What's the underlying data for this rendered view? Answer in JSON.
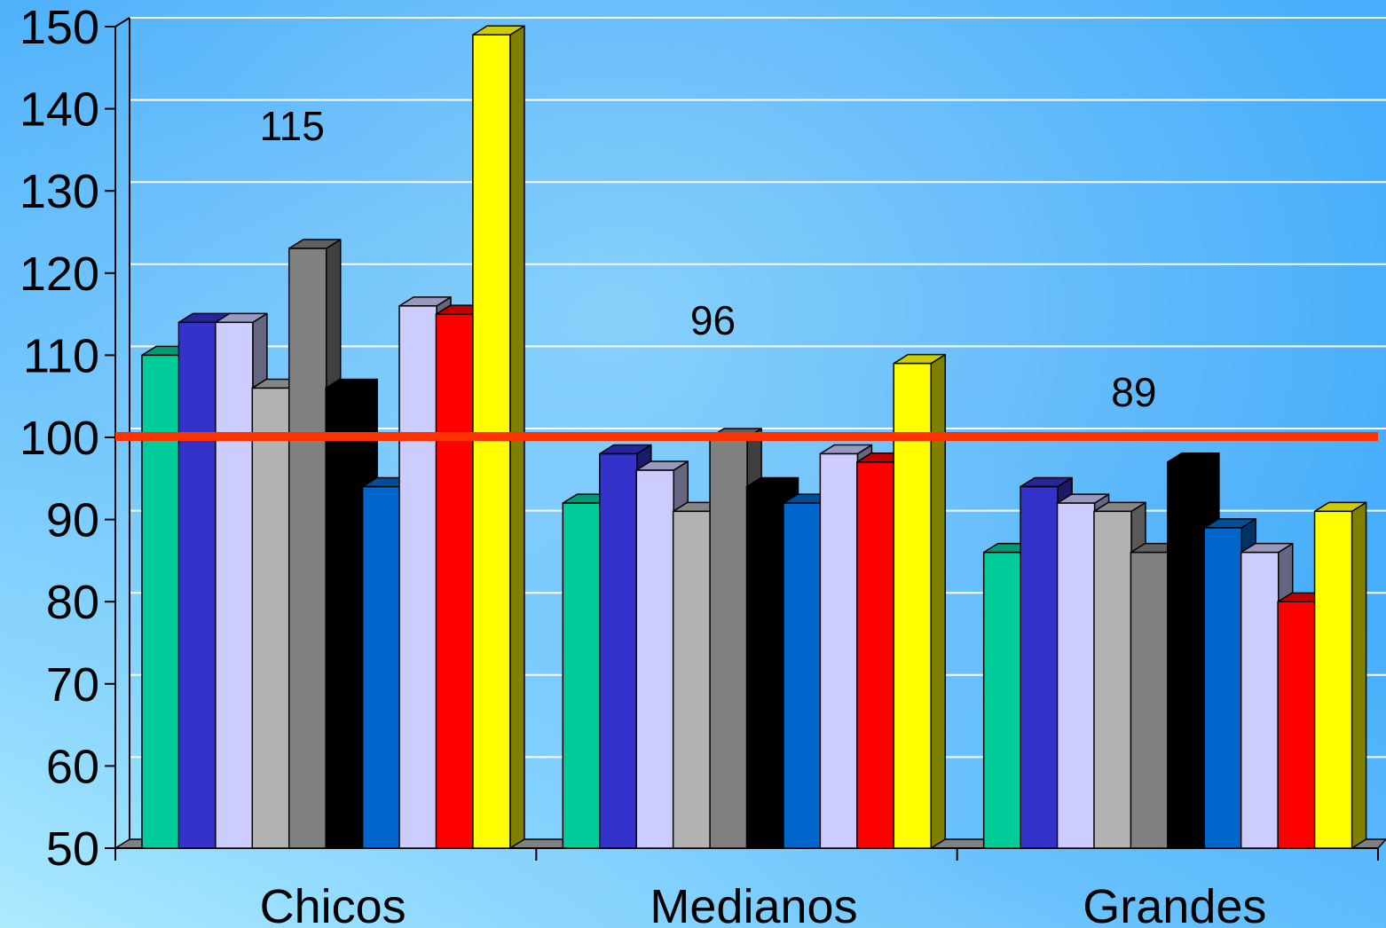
{
  "chart_data": {
    "type": "bar",
    "title": "",
    "xlabel": "",
    "ylabel": "",
    "ylim": [
      50,
      150
    ],
    "yticks": [
      50,
      60,
      70,
      80,
      90,
      100,
      110,
      120,
      130,
      140,
      150
    ],
    "grid": true,
    "reference_line": {
      "value": 100,
      "color": "#ff3300"
    },
    "categories": [
      "Chicos",
      "Medianos",
      "Grandes"
    ],
    "category_labels": [
      "115",
      "96",
      "89"
    ],
    "series": [
      {
        "color": "#00cc99",
        "values": [
          110,
          92,
          86
        ]
      },
      {
        "color": "#3333cc",
        "values": [
          114,
          98,
          94
        ]
      },
      {
        "color": "#ccccff",
        "values": [
          114,
          96,
          92
        ]
      },
      {
        "color": "#b2b2b2",
        "values": [
          106,
          91,
          91
        ]
      },
      {
        "color": "#808080",
        "values": [
          123,
          100,
          86
        ]
      },
      {
        "color": "#000000",
        "values": [
          106,
          94,
          97
        ]
      },
      {
        "color": "#0066cc",
        "values": [
          94,
          92,
          89
        ]
      },
      {
        "color": "#ccccff",
        "values": [
          116,
          98,
          86
        ]
      },
      {
        "color": "#ff0000",
        "values": [
          115,
          97,
          80
        ]
      },
      {
        "color": "#ffff00",
        "values": [
          149,
          109,
          91
        ]
      }
    ]
  }
}
